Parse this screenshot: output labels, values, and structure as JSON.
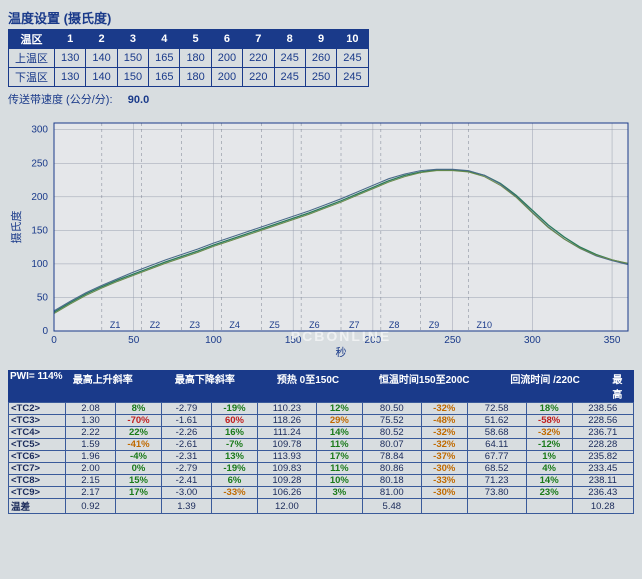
{
  "settings": {
    "title": "温度设置 (摄氏度)",
    "zone_header": "温区",
    "zones": [
      "1",
      "2",
      "3",
      "4",
      "5",
      "6",
      "7",
      "8",
      "9",
      "10"
    ],
    "rows": [
      {
        "label": "上温区",
        "vals": [
          "130",
          "140",
          "150",
          "165",
          "180",
          "200",
          "220",
          "245",
          "260",
          "245"
        ]
      },
      {
        "label": "下温区",
        "vals": [
          "130",
          "140",
          "150",
          "165",
          "180",
          "200",
          "220",
          "245",
          "250",
          "245"
        ]
      }
    ],
    "conveyor_label": "传送带速度 (公分/分):",
    "conveyor_value": "90.0"
  },
  "chart": {
    "y_label": "摄氏度",
    "x_label": "秒",
    "watermark": "PCBONLINE",
    "xlim": [
      0,
      360
    ],
    "ylim": [
      0,
      310
    ],
    "xticks": [
      0,
      50,
      100,
      150,
      200,
      250,
      300,
      350
    ],
    "yticks": [
      0,
      50,
      100,
      150,
      200,
      250,
      300
    ],
    "zone_marks": [
      "Z1",
      "Z2",
      "Z3",
      "Z4",
      "Z5",
      "Z6",
      "Z7",
      "Z8",
      "Z9",
      "Z10"
    ],
    "zone_x": [
      30,
      55,
      80,
      105,
      130,
      155,
      180,
      205,
      230,
      260
    ],
    "grid_color": "#9aa0b0",
    "bg_color": "#e5e7ea",
    "series": [
      {
        "color": "#2a7a5a",
        "width": 1.3,
        "pts": [
          [
            0,
            28
          ],
          [
            10,
            42
          ],
          [
            20,
            55
          ],
          [
            30,
            66
          ],
          [
            40,
            76
          ],
          [
            50,
            85
          ],
          [
            60,
            94
          ],
          [
            70,
            103
          ],
          [
            80,
            111
          ],
          [
            90,
            119
          ],
          [
            100,
            128
          ],
          [
            110,
            136
          ],
          [
            120,
            144
          ],
          [
            130,
            152
          ],
          [
            140,
            160
          ],
          [
            150,
            168
          ],
          [
            160,
            176
          ],
          [
            170,
            185
          ],
          [
            180,
            194
          ],
          [
            190,
            204
          ],
          [
            200,
            214
          ],
          [
            210,
            224
          ],
          [
            220,
            232
          ],
          [
            230,
            237
          ],
          [
            240,
            240
          ],
          [
            250,
            240
          ],
          [
            260,
            238
          ],
          [
            270,
            232
          ],
          [
            280,
            220
          ],
          [
            290,
            202
          ],
          [
            300,
            180
          ],
          [
            310,
            158
          ],
          [
            320,
            140
          ],
          [
            330,
            125
          ],
          [
            340,
            114
          ],
          [
            350,
            106
          ],
          [
            360,
            100
          ]
        ]
      },
      {
        "color": "#4a6a8a",
        "width": 1.1,
        "pts": [
          [
            0,
            30
          ],
          [
            10,
            44
          ],
          [
            20,
            57
          ],
          [
            30,
            68
          ],
          [
            40,
            78
          ],
          [
            50,
            88
          ],
          [
            60,
            97
          ],
          [
            70,
            106
          ],
          [
            80,
            114
          ],
          [
            90,
            122
          ],
          [
            100,
            131
          ],
          [
            110,
            139
          ],
          [
            120,
            147
          ],
          [
            130,
            155
          ],
          [
            140,
            163
          ],
          [
            150,
            171
          ],
          [
            160,
            179
          ],
          [
            170,
            188
          ],
          [
            180,
            197
          ],
          [
            190,
            207
          ],
          [
            200,
            217
          ],
          [
            210,
            227
          ],
          [
            220,
            234
          ],
          [
            230,
            239
          ],
          [
            240,
            241
          ],
          [
            250,
            241
          ],
          [
            260,
            239
          ],
          [
            270,
            232
          ],
          [
            280,
            219
          ],
          [
            290,
            200
          ],
          [
            300,
            177
          ],
          [
            310,
            155
          ],
          [
            320,
            137
          ],
          [
            330,
            123
          ],
          [
            340,
            112
          ],
          [
            350,
            105
          ],
          [
            360,
            99
          ]
        ]
      },
      {
        "color": "#6a8a4a",
        "width": 1.0,
        "pts": [
          [
            0,
            26
          ],
          [
            10,
            40
          ],
          [
            20,
            53
          ],
          [
            30,
            64
          ],
          [
            40,
            74
          ],
          [
            50,
            83
          ],
          [
            60,
            92
          ],
          [
            70,
            101
          ],
          [
            80,
            109
          ],
          [
            90,
            117
          ],
          [
            100,
            126
          ],
          [
            110,
            134
          ],
          [
            120,
            142
          ],
          [
            130,
            150
          ],
          [
            140,
            158
          ],
          [
            150,
            166
          ],
          [
            160,
            174
          ],
          [
            170,
            183
          ],
          [
            180,
            192
          ],
          [
            190,
            202
          ],
          [
            200,
            212
          ],
          [
            210,
            222
          ],
          [
            220,
            230
          ],
          [
            230,
            236
          ],
          [
            240,
            239
          ],
          [
            250,
            239
          ],
          [
            260,
            237
          ],
          [
            270,
            230
          ],
          [
            280,
            217
          ],
          [
            290,
            199
          ],
          [
            300,
            176
          ],
          [
            310,
            154
          ],
          [
            320,
            137
          ],
          [
            330,
            123
          ],
          [
            340,
            113
          ],
          [
            350,
            106
          ],
          [
            360,
            101
          ]
        ]
      }
    ]
  },
  "pwi": {
    "pwi_label": "PWI= 114%",
    "headers": [
      "最高上升斜率",
      "最高下降斜率",
      "预热 0至150C",
      "恒温时间150至200C",
      "回流时间 /220C",
      "最高"
    ]
  },
  "results": {
    "rows": [
      {
        "label": "<TC2>",
        "c": [
          "2.08",
          "8%",
          "-2.79",
          "-19%",
          "110.23",
          "12%",
          "80.50",
          "-32%",
          "72.58",
          "18%",
          "238.56"
        ]
      },
      {
        "label": "<TC3>",
        "c": [
          "1.30",
          "-70%",
          "-1.61",
          "60%",
          "118.26",
          "29%",
          "75.52",
          "-48%",
          "51.62",
          "-58%",
          "228.56"
        ]
      },
      {
        "label": "<TC4>",
        "c": [
          "2.22",
          "22%",
          "-2.26",
          "16%",
          "111.24",
          "14%",
          "80.52",
          "-32%",
          "58.68",
          "-32%",
          "236.71"
        ]
      },
      {
        "label": "<TC5>",
        "c": [
          "1.59",
          "-41%",
          "-2.61",
          "-7%",
          "109.78",
          "11%",
          "80.07",
          "-32%",
          "64.11",
          "-12%",
          "228.28"
        ]
      },
      {
        "label": "<TC6>",
        "c": [
          "1.96",
          "-4%",
          "-2.31",
          "13%",
          "113.93",
          "17%",
          "78.84",
          "-37%",
          "67.77",
          "1%",
          "235.82"
        ]
      },
      {
        "label": "<TC7>",
        "c": [
          "2.00",
          "0%",
          "-2.79",
          "-19%",
          "109.83",
          "11%",
          "80.86",
          "-30%",
          "68.52",
          "4%",
          "233.45"
        ]
      },
      {
        "label": "<TC8>",
        "c": [
          "2.15",
          "15%",
          "-2.41",
          "6%",
          "109.28",
          "10%",
          "80.18",
          "-33%",
          "71.23",
          "14%",
          "238.11"
        ]
      },
      {
        "label": "<TC9>",
        "c": [
          "2.17",
          "17%",
          "-3.00",
          "-33%",
          "106.26",
          "3%",
          "81.00",
          "-30%",
          "73.80",
          "23%",
          "236.43"
        ]
      },
      {
        "label": "温差",
        "c": [
          "0.92",
          "",
          "1.39",
          "",
          "12.00",
          "",
          "5.48",
          "",
          "",
          "",
          "10.28"
        ]
      }
    ],
    "pct_colors": {
      "low": "#c02020",
      "mid": "#c06a00",
      "ok": "#1a7a1a"
    }
  }
}
